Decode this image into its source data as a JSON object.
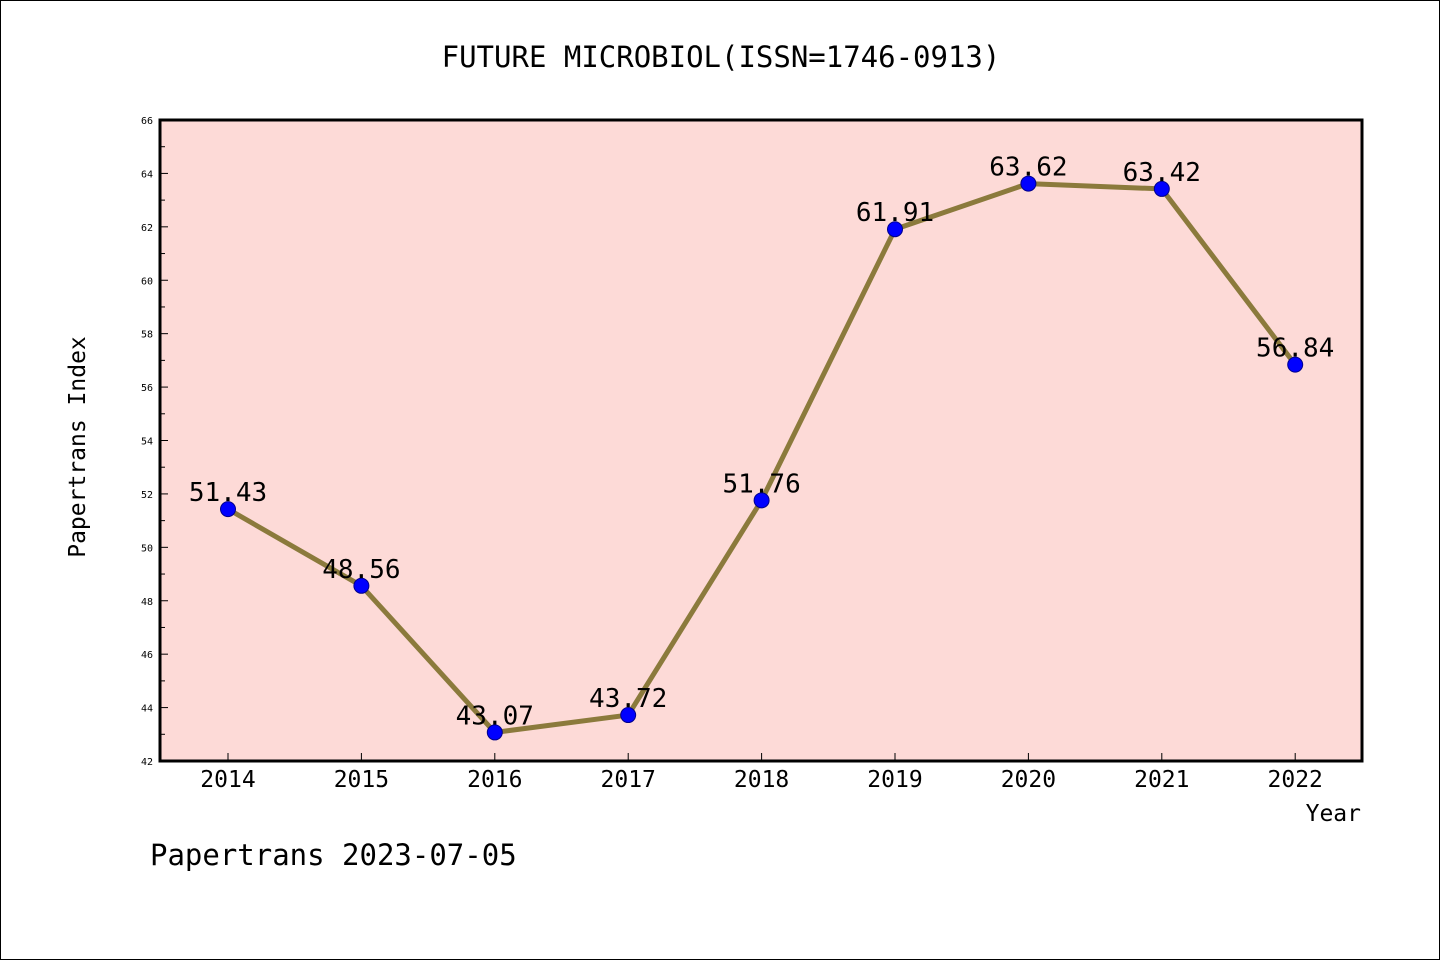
{
  "chart_data": {
    "type": "line",
    "title": "FUTURE MICROBIOL(ISSN=1746-0913)",
    "xlabel": "Year",
    "ylabel": "Papertrans Index",
    "categories": [
      "2014",
      "2015",
      "2016",
      "2017",
      "2018",
      "2019",
      "2020",
      "2021",
      "2022"
    ],
    "series": [
      {
        "values": [
          51.43,
          48.56,
          43.07,
          43.72,
          51.76,
          61.91,
          63.62,
          63.42,
          56.84
        ],
        "labels": [
          "51.43",
          "48.56",
          "43.07",
          "43.72",
          "51.76",
          "61.91",
          "63.62",
          "63.42",
          "56.84"
        ]
      }
    ],
    "ylim": [
      42,
      66
    ],
    "yticks": [
      "42",
      "44",
      "46",
      "48",
      "50",
      "52",
      "54",
      "56",
      "58",
      "60",
      "62",
      "64",
      "66"
    ],
    "grid": false,
    "colors": {
      "plot_background": "#fddad7",
      "line": "#8b7a3c",
      "marker": "#0000ff"
    }
  },
  "footer": {
    "text": "Papertrans 2023-07-05"
  }
}
